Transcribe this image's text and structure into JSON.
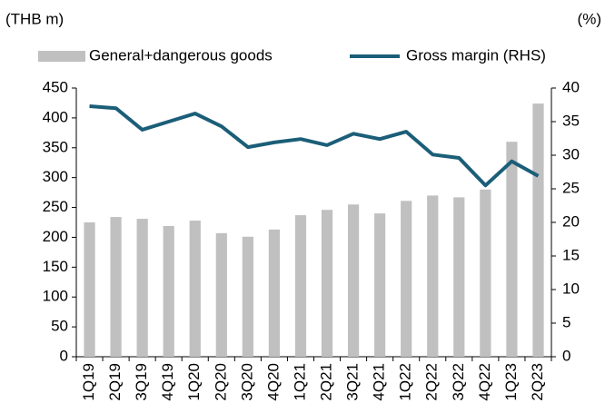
{
  "chart_data": {
    "type": "bar_line",
    "y_label": "(THB m)",
    "y2_label": "(%)",
    "categories": [
      "1Q19",
      "2Q19",
      "3Q19",
      "4Q19",
      "1Q20",
      "2Q20",
      "3Q20",
      "4Q20",
      "1Q21",
      "2Q21",
      "3Q21",
      "4Q21",
      "1Q22",
      "2Q22",
      "3Q22",
      "4Q22",
      "1Q23",
      "2Q23"
    ],
    "series": [
      {
        "name": "General+dangerous goods",
        "type": "bar",
        "color": "#c0c0c0",
        "axis": "y",
        "values": [
          225,
          234,
          231,
          219,
          228,
          207,
          201,
          213,
          237,
          246,
          255,
          240,
          261,
          270,
          267,
          280,
          360,
          424
        ]
      },
      {
        "name": "Gross margin (RHS)",
        "type": "line",
        "color": "#1b5e78",
        "axis": "y2",
        "values": [
          37.3,
          37.0,
          33.8,
          35.0,
          36.2,
          34.3,
          31.2,
          31.9,
          32.4,
          31.5,
          33.2,
          32.4,
          33.5,
          30.1,
          29.6,
          25.5,
          29.1,
          26.9
        ]
      }
    ],
    "ylim": [
      0,
      450
    ],
    "yticks": [
      0,
      50,
      100,
      150,
      200,
      250,
      300,
      350,
      400,
      450
    ],
    "y2lim": [
      0,
      40
    ],
    "y2ticks": [
      0,
      5,
      10,
      15,
      20,
      25,
      30,
      35,
      40
    ]
  }
}
